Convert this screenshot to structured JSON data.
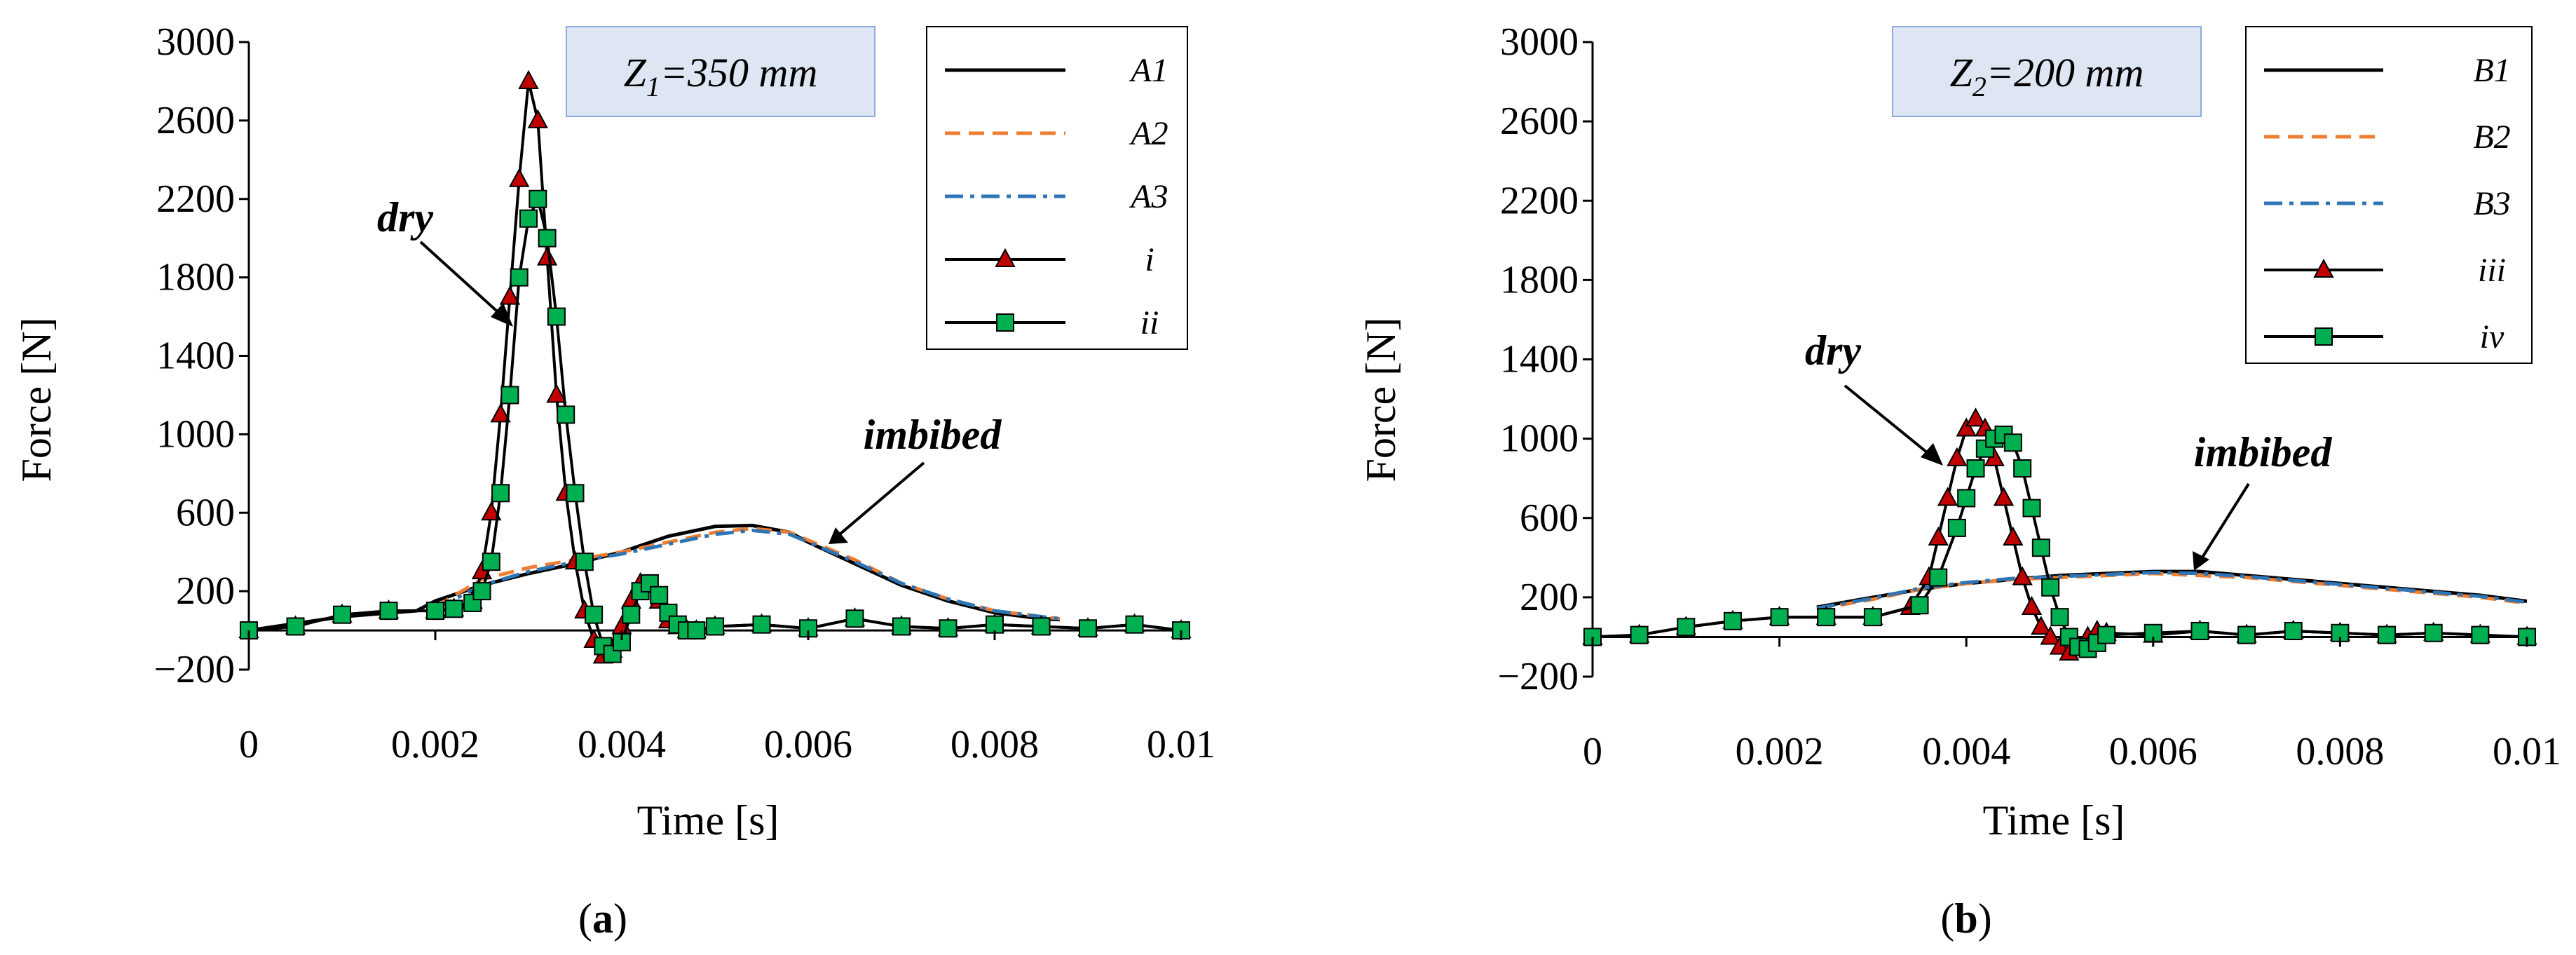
{
  "colors": {
    "solid": "#000000",
    "orange": "#ED7D31",
    "blue": "#2E75B6",
    "triangle_fill": "#C00000",
    "square_fill": "#00B050",
    "box_fill": "#DEE6F4"
  },
  "panels": [
    {
      "label_open": "(",
      "label_letter": "a",
      "label_close": ")",
      "box_prefix": "Z",
      "box_sub": "1",
      "box_suffix": "=350 mm",
      "annot_dry": "dry",
      "annot_imbibed": "imbibed"
    },
    {
      "label_open": "(",
      "label_letter": "b",
      "label_close": ")",
      "box_prefix": "Z",
      "box_sub": "2",
      "box_suffix": "=200 mm",
      "annot_dry": "dry",
      "annot_imbibed": "imbibed"
    }
  ],
  "chart_data": [
    {
      "type": "line",
      "title": "",
      "xlabel": "Time [s]",
      "ylabel": "Force [N]",
      "xlim": [
        0,
        0.01
      ],
      "ylim": [
        -200,
        3000
      ],
      "xticks": [
        "0",
        "0.002",
        "0.004",
        "0.006",
        "0.008",
        "0.01"
      ],
      "yticks": [
        "−200",
        "200",
        "600",
        "1000",
        "1400",
        "1800",
        "2200",
        "2600",
        "3000"
      ],
      "legend_position": "top-right",
      "series": [
        {
          "name": "A1",
          "style": "solid",
          "color": "#000000",
          "x": [
            0,
            0.001,
            0.0018,
            0.002,
            0.0025,
            0.003,
            0.0035,
            0.004,
            0.0045,
            0.005,
            0.0054,
            0.0058,
            0.006,
            0.0065,
            0.007,
            0.0075,
            0.008,
            0.0085,
            0.0087
          ],
          "y": [
            0,
            70,
            100,
            150,
            230,
            290,
            340,
            400,
            480,
            530,
            535,
            500,
            450,
            340,
            230,
            150,
            90,
            60,
            55
          ]
        },
        {
          "name": "A2",
          "style": "dash",
          "color": "#ED7D31",
          "x": [
            0.002,
            0.0025,
            0.003,
            0.0035,
            0.004,
            0.0045,
            0.005,
            0.0054,
            0.0058,
            0.006,
            0.0065,
            0.007,
            0.0075,
            0.008,
            0.0085,
            0.0087
          ],
          "y": [
            120,
            260,
            320,
            360,
            400,
            450,
            500,
            520,
            500,
            460,
            360,
            240,
            160,
            100,
            70,
            60
          ]
        },
        {
          "name": "A3",
          "style": "dashdot",
          "color": "#2E75B6",
          "x": [
            0.002,
            0.0025,
            0.003,
            0.0035,
            0.004,
            0.0045,
            0.005,
            0.0054,
            0.0058,
            0.006,
            0.0065,
            0.007,
            0.0075,
            0.008,
            0.0085,
            0.0087
          ],
          "y": [
            110,
            230,
            300,
            350,
            390,
            440,
            490,
            510,
            490,
            450,
            350,
            240,
            160,
            100,
            70,
            60
          ]
        },
        {
          "name": "i",
          "style": "marker-triangle",
          "color": "#000000",
          "fill": "#C00000",
          "x": [
            0,
            0.0005,
            0.001,
            0.0015,
            0.002,
            0.0022,
            0.0024,
            0.0025,
            0.0026,
            0.0027,
            0.0028,
            0.0029,
            0.003,
            0.0031,
            0.0032,
            0.0033,
            0.0034,
            0.0035,
            0.0036,
            0.0037,
            0.0038,
            0.0039,
            0.004,
            0.0041,
            0.0042,
            0.0043,
            0.0044,
            0.0045,
            0.0046,
            0.0047,
            0.0048,
            0.005,
            0.0055,
            0.006,
            0.0065,
            0.007,
            0.0075,
            0.008,
            0.0085,
            0.009,
            0.0095,
            0.01
          ],
          "y": [
            0,
            20,
            80,
            100,
            100,
            110,
            150,
            300,
            600,
            1100,
            1700,
            2300,
            2800,
            2600,
            1900,
            1200,
            700,
            350,
            100,
            -50,
            -130,
            -100,
            20,
            150,
            240,
            230,
            150,
            50,
            20,
            0,
            0,
            20,
            30,
            10,
            60,
            20,
            10,
            30,
            20,
            10,
            30,
            0
          ]
        },
        {
          "name": "ii",
          "style": "marker-square",
          "color": "#000000",
          "fill": "#00B050",
          "x": [
            0,
            0.0005,
            0.001,
            0.0015,
            0.002,
            0.0022,
            0.0024,
            0.0025,
            0.0026,
            0.0027,
            0.0028,
            0.0029,
            0.003,
            0.0031,
            0.0032,
            0.0033,
            0.0034,
            0.0035,
            0.0036,
            0.0037,
            0.0038,
            0.0039,
            0.004,
            0.0041,
            0.0042,
            0.0043,
            0.0044,
            0.0045,
            0.0046,
            0.0047,
            0.0048,
            0.005,
            0.0055,
            0.006,
            0.0065,
            0.007,
            0.0075,
            0.008,
            0.0085,
            0.009,
            0.0095,
            0.01
          ],
          "y": [
            0,
            20,
            80,
            100,
            100,
            110,
            140,
            200,
            350,
            700,
            1200,
            1800,
            2100,
            2200,
            2000,
            1600,
            1100,
            700,
            350,
            80,
            -80,
            -120,
            -60,
            80,
            200,
            240,
            180,
            90,
            30,
            0,
            0,
            20,
            30,
            10,
            60,
            20,
            10,
            30,
            20,
            10,
            30,
            0
          ]
        }
      ]
    },
    {
      "type": "line",
      "title": "",
      "xlabel": "Time [s]",
      "ylabel": "Force [N]",
      "xlim": [
        0,
        0.01
      ],
      "ylim": [
        -200,
        3000
      ],
      "xticks": [
        "0",
        "0.002",
        "0.004",
        "0.006",
        "0.008",
        "0.01"
      ],
      "yticks": [
        "−200",
        "200",
        "600",
        "1000",
        "1400",
        "1800",
        "2200",
        "2600",
        "3000"
      ],
      "legend_position": "top-right",
      "series": [
        {
          "name": "B1",
          "style": "solid",
          "color": "#000000",
          "x": [
            0.0024,
            0.003,
            0.0035,
            0.004,
            0.0045,
            0.005,
            0.0055,
            0.006,
            0.0065,
            0.007,
            0.0075,
            0.008,
            0.0085,
            0.009,
            0.0095,
            0.01
          ],
          "y": [
            150,
            200,
            240,
            270,
            290,
            310,
            320,
            330,
            330,
            310,
            290,
            270,
            250,
            230,
            210,
            180
          ]
        },
        {
          "name": "B2",
          "style": "dash",
          "color": "#ED7D31",
          "x": [
            0.0024,
            0.003,
            0.0035,
            0.004,
            0.0045,
            0.005,
            0.0055,
            0.006,
            0.0065,
            0.007,
            0.0075,
            0.008,
            0.0085,
            0.009,
            0.0095,
            0.01
          ],
          "y": [
            140,
            190,
            240,
            270,
            290,
            300,
            310,
            320,
            310,
            300,
            280,
            260,
            240,
            220,
            200,
            170
          ]
        },
        {
          "name": "B3",
          "style": "dashdot",
          "color": "#2E75B6",
          "x": [
            0.0024,
            0.003,
            0.0035,
            0.004,
            0.0045,
            0.005,
            0.0055,
            0.006,
            0.0065,
            0.007,
            0.0075,
            0.008,
            0.0085,
            0.009,
            0.0095,
            0.01
          ],
          "y": [
            145,
            195,
            245,
            275,
            295,
            305,
            315,
            325,
            320,
            305,
            285,
            265,
            245,
            225,
            205,
            175
          ]
        },
        {
          "name": "iii",
          "style": "marker-triangle",
          "color": "#000000",
          "fill": "#C00000",
          "x": [
            0,
            0.0005,
            0.001,
            0.0015,
            0.002,
            0.0025,
            0.003,
            0.0034,
            0.0036,
            0.0037,
            0.0038,
            0.0039,
            0.004,
            0.0041,
            0.0042,
            0.0043,
            0.0044,
            0.0045,
            0.0046,
            0.0047,
            0.0048,
            0.0049,
            0.005,
            0.0051,
            0.0052,
            0.0053,
            0.0054,
            0.0055,
            0.006,
            0.0065,
            0.007,
            0.0075,
            0.008,
            0.0085,
            0.009,
            0.0095,
            0.01
          ],
          "y": [
            0,
            10,
            50,
            80,
            100,
            100,
            100,
            150,
            300,
            500,
            700,
            900,
            1050,
            1100,
            1050,
            900,
            700,
            500,
            300,
            150,
            50,
            0,
            -50,
            -80,
            -50,
            0,
            30,
            20,
            10,
            30,
            10,
            30,
            20,
            10,
            20,
            10,
            0
          ]
        },
        {
          "name": "iv",
          "style": "marker-square",
          "color": "#000000",
          "fill": "#00B050",
          "x": [
            0,
            0.0005,
            0.001,
            0.0015,
            0.002,
            0.0025,
            0.003,
            0.0035,
            0.0037,
            0.0039,
            0.004,
            0.0041,
            0.0042,
            0.0043,
            0.0044,
            0.0045,
            0.0046,
            0.0047,
            0.0048,
            0.0049,
            0.005,
            0.0051,
            0.0052,
            0.0053,
            0.0054,
            0.0055,
            0.006,
            0.0065,
            0.007,
            0.0075,
            0.008,
            0.0085,
            0.009,
            0.0095,
            0.01
          ],
          "y": [
            0,
            10,
            50,
            80,
            100,
            100,
            100,
            160,
            300,
            550,
            700,
            850,
            950,
            1000,
            1020,
            980,
            850,
            650,
            450,
            250,
            100,
            0,
            -50,
            -60,
            -30,
            10,
            20,
            30,
            10,
            30,
            20,
            10,
            20,
            10,
            0
          ]
        }
      ]
    }
  ]
}
